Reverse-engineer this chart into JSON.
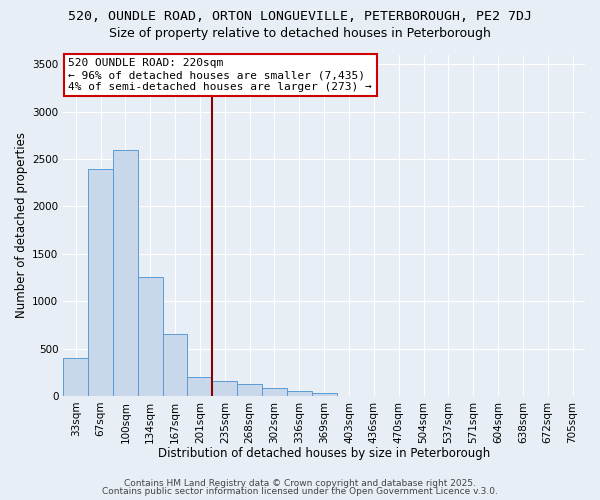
{
  "title_line1": "520, OUNDLE ROAD, ORTON LONGUEVILLE, PETERBOROUGH, PE2 7DJ",
  "title_line2": "Size of property relative to detached houses in Peterborough",
  "xlabel": "Distribution of detached houses by size in Peterborough",
  "ylabel": "Number of detached properties",
  "categories": [
    "33sqm",
    "67sqm",
    "100sqm",
    "134sqm",
    "167sqm",
    "201sqm",
    "235sqm",
    "268sqm",
    "302sqm",
    "336sqm",
    "369sqm",
    "403sqm",
    "436sqm",
    "470sqm",
    "504sqm",
    "537sqm",
    "571sqm",
    "604sqm",
    "638sqm",
    "672sqm",
    "705sqm"
  ],
  "values": [
    400,
    2400,
    2600,
    1250,
    650,
    200,
    160,
    130,
    80,
    50,
    30,
    0,
    0,
    0,
    0,
    0,
    0,
    0,
    0,
    0,
    0
  ],
  "bar_color": "#c8d8ea",
  "bar_edge_color": "#5b9bd5",
  "vline_x": 5.5,
  "vline_color": "#8b0000",
  "annotation_text": "520 OUNDLE ROAD: 220sqm\n← 96% of detached houses are smaller (7,435)\n4% of semi-detached houses are larger (273) →",
  "annotation_box_color": "white",
  "annotation_box_edge": "#cc0000",
  "ylim": [
    0,
    3600
  ],
  "yticks": [
    0,
    500,
    1000,
    1500,
    2000,
    2500,
    3000,
    3500
  ],
  "background_color": "#e8eef5",
  "plot_bg_color": "#e8eef5",
  "footer_line1": "Contains HM Land Registry data © Crown copyright and database right 2025.",
  "footer_line2": "Contains public sector information licensed under the Open Government Licence v.3.0.",
  "title_fontsize": 9.5,
  "subtitle_fontsize": 9,
  "axis_label_fontsize": 8.5,
  "tick_fontsize": 7.5,
  "annotation_fontsize": 8,
  "footer_fontsize": 6.5
}
